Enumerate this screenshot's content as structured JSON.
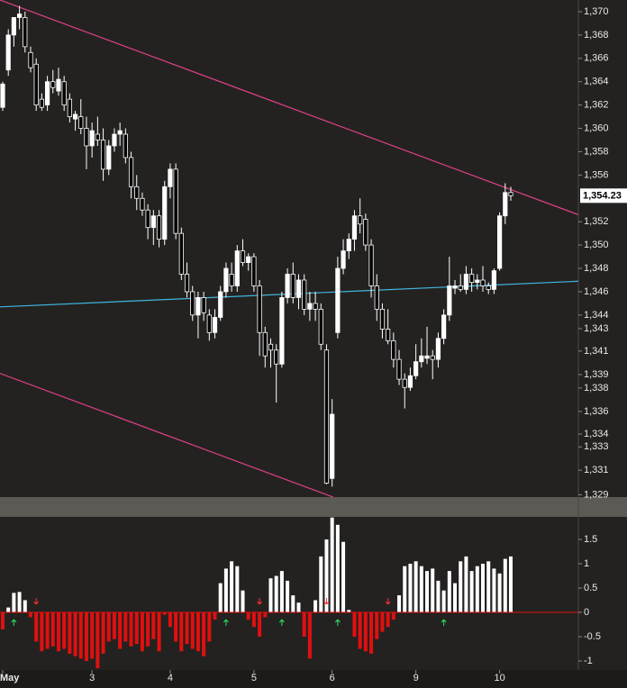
{
  "chart_data": [
    {
      "type": "candlestick",
      "open": [
        1361.8,
        1365,
        1368,
        1369.5,
        1369.5,
        1366.5,
        1365.5,
        1362.5,
        1362,
        1364,
        1363.2,
        1364,
        1362.5,
        1360.8,
        1361,
        1360,
        1358.5,
        1359.5,
        1359,
        1356.5,
        1358.5,
        1359.5,
        1359.5,
        1357.5,
        1355,
        1354,
        1353,
        1351.5,
        1352.5,
        1350.5,
        1355,
        1356.5,
        1351,
        1347.5,
        1346,
        1344,
        1345.5,
        1344,
        1342.5,
        1343.8,
        1346,
        1347.5,
        1346.5,
        1349.5,
        1348.5,
        1349,
        1346.5,
        1342.5,
        1341.5,
        1341,
        1339.8,
        1345.5,
        1347.5,
        1345.5,
        1347,
        1344.5,
        1345,
        1344.5,
        1341,
        1330,
        1342.5,
        1348,
        1349.5,
        1350.5,
        1352.5,
        1352.2,
        1350,
        1346.5,
        1344.5,
        1342.8,
        1341.8,
        1340.2,
        1338.5,
        1337.8,
        1338.8,
        1340,
        1340.3,
        1340.5,
        1340.2,
        1342,
        1344,
        1346.3,
        1346.5,
        1346.2,
        1347.5,
        1346.8,
        1347,
        1346.5,
        1346.2,
        1348,
        1352.5,
        1354.5
      ],
      "high": [
        1364,
        1368.5,
        1369.5,
        1370.5,
        1370,
        1367,
        1366,
        1363,
        1364.5,
        1365,
        1365.2,
        1364.5,
        1363,
        1361.5,
        1362.5,
        1361,
        1360.5,
        1361,
        1360,
        1359,
        1360,
        1360.5,
        1360,
        1358,
        1356,
        1354.5,
        1353.5,
        1353,
        1353,
        1355.5,
        1357,
        1357,
        1351.5,
        1348.5,
        1346.5,
        1346,
        1346,
        1344.5,
        1344.5,
        1346.5,
        1348.5,
        1348.5,
        1350,
        1350.5,
        1349.3,
        1349.3,
        1347,
        1343,
        1342,
        1341.5,
        1346,
        1348,
        1348.5,
        1347.5,
        1347.5,
        1346,
        1346,
        1345,
        1341.5,
        1336.8,
        1349,
        1350.5,
        1351,
        1353,
        1354,
        1352.7,
        1350.5,
        1347.5,
        1345,
        1344.5,
        1342.5,
        1341,
        1339,
        1339.5,
        1341.5,
        1342,
        1343,
        1341,
        1342.5,
        1344.5,
        1349,
        1347,
        1347.5,
        1348.2,
        1348,
        1347.5,
        1348.2,
        1346.8,
        1348,
        1352.8,
        1355.3,
        1355
      ],
      "low": [
        1361.5,
        1364.5,
        1367,
        1368.5,
        1366.5,
        1364.8,
        1361.5,
        1361.5,
        1361.5,
        1363,
        1362.8,
        1361.5,
        1360.5,
        1359.8,
        1359.5,
        1356.5,
        1357.5,
        1358.5,
        1355.5,
        1356,
        1358,
        1358.5,
        1357,
        1354,
        1353,
        1352.5,
        1350.5,
        1350,
        1349.8,
        1350,
        1354,
        1350.5,
        1347,
        1345.5,
        1343.5,
        1342,
        1343.5,
        1341.8,
        1342,
        1343.5,
        1345.5,
        1346,
        1346,
        1348.2,
        1347.8,
        1346,
        1340.5,
        1339.5,
        1339.5,
        1336.5,
        1339.5,
        1345,
        1345,
        1344.5,
        1344,
        1343.5,
        1343.5,
        1341,
        1329.5,
        1329.3,
        1342,
        1347.5,
        1348.8,
        1349.5,
        1351,
        1349.5,
        1345.5,
        1343.5,
        1342,
        1341.5,
        1339.5,
        1338,
        1336,
        1337.5,
        1338.5,
        1339.5,
        1339.8,
        1338.5,
        1339.5,
        1341.5,
        1343.5,
        1345.8,
        1346,
        1345.8,
        1346,
        1346.2,
        1346,
        1345.8,
        1345.8,
        1347.8,
        1351.8,
        1353.8
      ],
      "close": [
        1363.8,
        1368,
        1369.5,
        1369.8,
        1367,
        1365.2,
        1362,
        1361.8,
        1364,
        1363.5,
        1364.2,
        1362,
        1361,
        1361.2,
        1360,
        1358.5,
        1359.8,
        1359,
        1356.5,
        1358.5,
        1359.5,
        1359.8,
        1357.5,
        1355,
        1354,
        1353,
        1351.5,
        1352.5,
        1350.5,
        1355,
        1356.5,
        1351,
        1347.5,
        1346,
        1344,
        1345.5,
        1344.2,
        1342.5,
        1343.8,
        1346,
        1348,
        1346.5,
        1349.5,
        1348.5,
        1349,
        1346.5,
        1342.5,
        1340.5,
        1341,
        1339.8,
        1345.5,
        1347.5,
        1345.5,
        1347,
        1344.5,
        1345,
        1344.5,
        1341.5,
        1329.6,
        1335.5,
        1348,
        1349.5,
        1350.5,
        1352.5,
        1351.8,
        1350,
        1346.5,
        1344.5,
        1342.8,
        1341.8,
        1340.2,
        1338.5,
        1337.8,
        1338.8,
        1340,
        1340.5,
        1340.5,
        1340.2,
        1342,
        1344,
        1346.5,
        1346.5,
        1346.2,
        1347.5,
        1346.8,
        1347,
        1346.5,
        1346.2,
        1347.8,
        1352.5,
        1354.5,
        1354.23
      ],
      "ylim": [
        1328.4,
        1371.0
      ],
      "yticks": [
        {
          "value": 1370,
          "label": "1,370"
        },
        {
          "value": 1368,
          "label": "1,368"
        },
        {
          "value": 1366,
          "label": "1,366"
        },
        {
          "value": 1364,
          "label": "1,364"
        },
        {
          "value": 1362,
          "label": "1,362"
        },
        {
          "value": 1360,
          "label": "1,360"
        },
        {
          "value": 1358,
          "label": "1,358"
        },
        {
          "value": 1356,
          "label": "1,356"
        },
        {
          "value": 1352,
          "label": "1,352"
        },
        {
          "value": 1350,
          "label": "1,350"
        },
        {
          "value": 1348,
          "label": "1,348"
        },
        {
          "value": 1346,
          "label": "1,346"
        },
        {
          "value": 1344,
          "label": "1,344"
        },
        {
          "value": 1342.84,
          "label": "1,343"
        },
        {
          "value": 1340.91,
          "label": "1,341"
        },
        {
          "value": 1338.9,
          "label": "1,339"
        },
        {
          "value": 1337.75,
          "label": "1,338"
        },
        {
          "value": 1335.74,
          "label": "1,336"
        },
        {
          "value": 1333.8,
          "label": "1,334"
        },
        {
          "value": 1332.7,
          "label": "1,333"
        },
        {
          "value": 1330.7,
          "label": "1,331"
        },
        {
          "value": 1328.6,
          "label": "1,329"
        }
      ],
      "last_price": {
        "value": 1354.23,
        "label": "1,354.23"
      },
      "xticks": [
        {
          "value": 0,
          "label": "May"
        },
        {
          "value": 16,
          "label": "3"
        },
        {
          "value": 30,
          "label": "4"
        },
        {
          "value": 45,
          "label": "5"
        },
        {
          "value": 59,
          "label": "6"
        },
        {
          "value": 74,
          "label": "9"
        },
        {
          "value": 89,
          "label": "10"
        }
      ],
      "trendlines": [
        {
          "color": "#e0408a",
          "x": [
            -0.48,
            103.1
          ],
          "y": [
            1371.0,
            1352.6
          ]
        },
        {
          "color": "#e0408a",
          "x": [
            -0.48,
            59.2
          ],
          "y": [
            1339.0,
            1328.4
          ]
        },
        {
          "color": "#3fb7e0",
          "x": [
            -0.48,
            103.1
          ],
          "y": [
            1344.7,
            1346.9
          ]
        }
      ],
      "up_color": "#ffffff",
      "down_color": "#000000"
    },
    {
      "type": "bar",
      "values": [
        -0.35,
        0.1,
        0.4,
        0.42,
        0.25,
        -0.1,
        -0.6,
        -0.8,
        -0.75,
        -0.7,
        -0.8,
        -0.75,
        -0.85,
        -0.9,
        -0.95,
        -1.0,
        -0.95,
        -1.15,
        -0.85,
        -0.6,
        -0.55,
        -0.75,
        -0.6,
        -0.7,
        -0.65,
        -0.8,
        -0.7,
        -0.55,
        -0.8,
        -0.05,
        -0.3,
        -0.6,
        -0.8,
        -0.65,
        -0.75,
        -0.8,
        -0.9,
        -0.6,
        -0.15,
        0.6,
        0.9,
        1.05,
        0.95,
        0.45,
        -0.15,
        -0.3,
        -0.5,
        -0.1,
        0.7,
        0.75,
        0.85,
        0.65,
        0.35,
        0.2,
        -0.5,
        -0.95,
        0.25,
        1.15,
        1.5,
        1.95,
        1.8,
        1.45,
        0.05,
        -0.5,
        -0.75,
        -0.8,
        -0.85,
        -0.55,
        -0.4,
        -0.3,
        -0.15,
        0.35,
        0.95,
        1.0,
        1.05,
        0.95,
        0.85,
        0.9,
        0.65,
        0.45,
        0.85,
        0.6,
        1.05,
        1.15,
        0.85,
        0.95,
        1.0,
        1.05,
        0.9,
        0.8,
        1.1,
        1.15
      ],
      "ylim": [
        -1.185,
        1.963
      ],
      "yticks": [
        1.5,
        1,
        0.5,
        0,
        -0.5,
        -1
      ],
      "positive_color": "#ffffff",
      "negative_color": "#e01010",
      "buy_signals": [
        2,
        40,
        50,
        60,
        79
      ],
      "sell_signals": [
        6,
        46,
        58,
        69
      ],
      "buy_color": "#30e060",
      "sell_color": "#ff3030"
    }
  ]
}
